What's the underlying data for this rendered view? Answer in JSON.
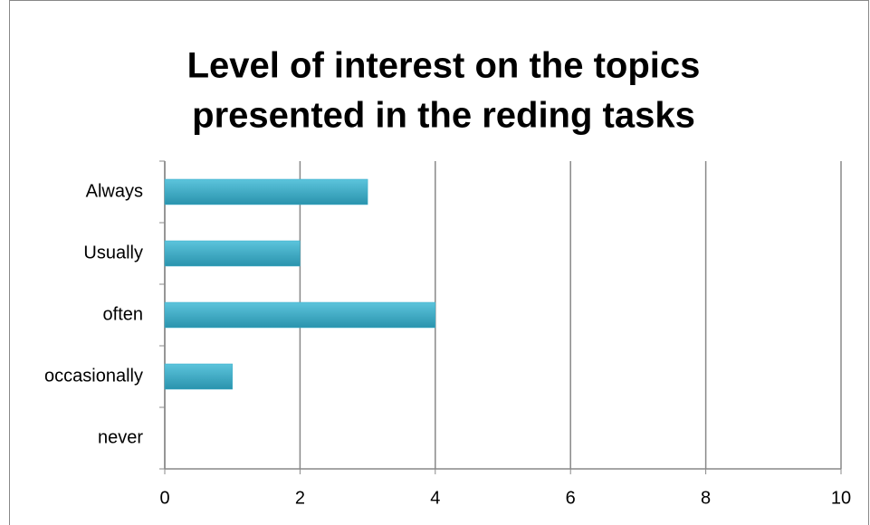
{
  "chart_data": {
    "type": "barh",
    "title": [
      "Level of interest on the topics",
      "presented in the reding tasks"
    ],
    "categories": [
      "Always",
      "Usually",
      "often",
      "occasionally",
      "never"
    ],
    "values": [
      3,
      2,
      4,
      1,
      0
    ],
    "color": "#3aaec9",
    "xlim": [
      0,
      10
    ],
    "xticks": [
      0,
      2,
      4,
      6,
      8,
      10
    ],
    "grid": true
  }
}
